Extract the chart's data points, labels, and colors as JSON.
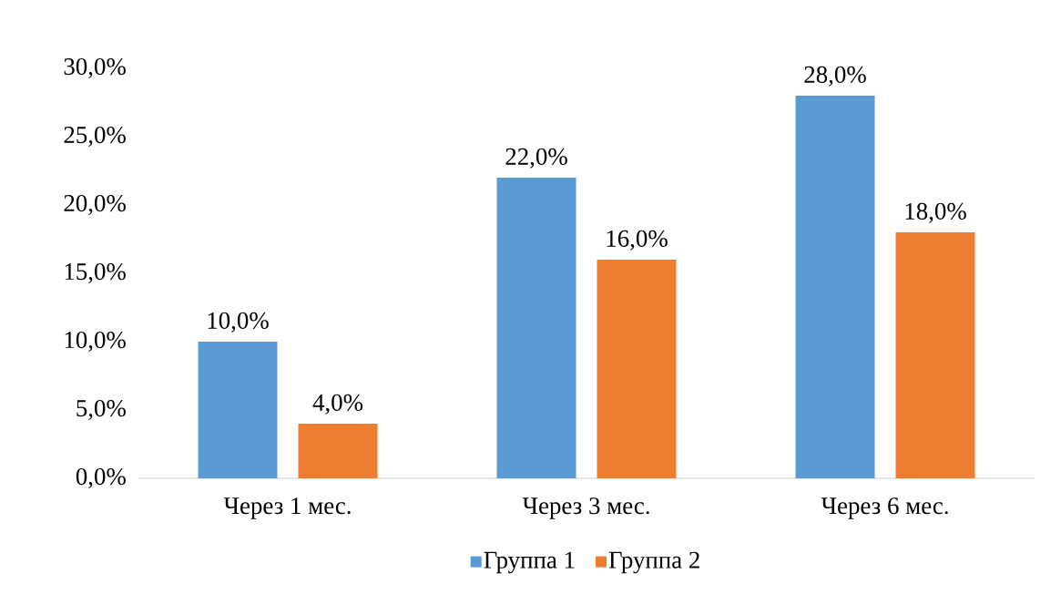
{
  "chart_data": {
    "type": "bar",
    "categories": [
      "Через 1 мес.",
      "Через 3 мес.",
      "Через 6 мес."
    ],
    "series": [
      {
        "name": "Группа 1",
        "color": "#5b9bd5",
        "values": [
          10,
          22,
          28
        ],
        "value_labels": [
          "10,0%",
          "22,0%",
          "28,0%"
        ]
      },
      {
        "name": "Группа 2",
        "color": "#ed7d31",
        "values": [
          4,
          16,
          18
        ],
        "value_labels": [
          "4,0%",
          "16,0%",
          "18,0%"
        ]
      }
    ],
    "ylim": [
      0,
      30
    ],
    "yticks": [
      {
        "value": 0,
        "label": "0,0%"
      },
      {
        "value": 5,
        "label": "5,0%"
      },
      {
        "value": 10,
        "label": "10,0%"
      },
      {
        "value": 15,
        "label": "15,0%"
      },
      {
        "value": 20,
        "label": "20,0%"
      },
      {
        "value": 25,
        "label": "25,0%"
      },
      {
        "value": 30,
        "label": "30,0%"
      }
    ],
    "grid": false,
    "legend": "bottom"
  }
}
